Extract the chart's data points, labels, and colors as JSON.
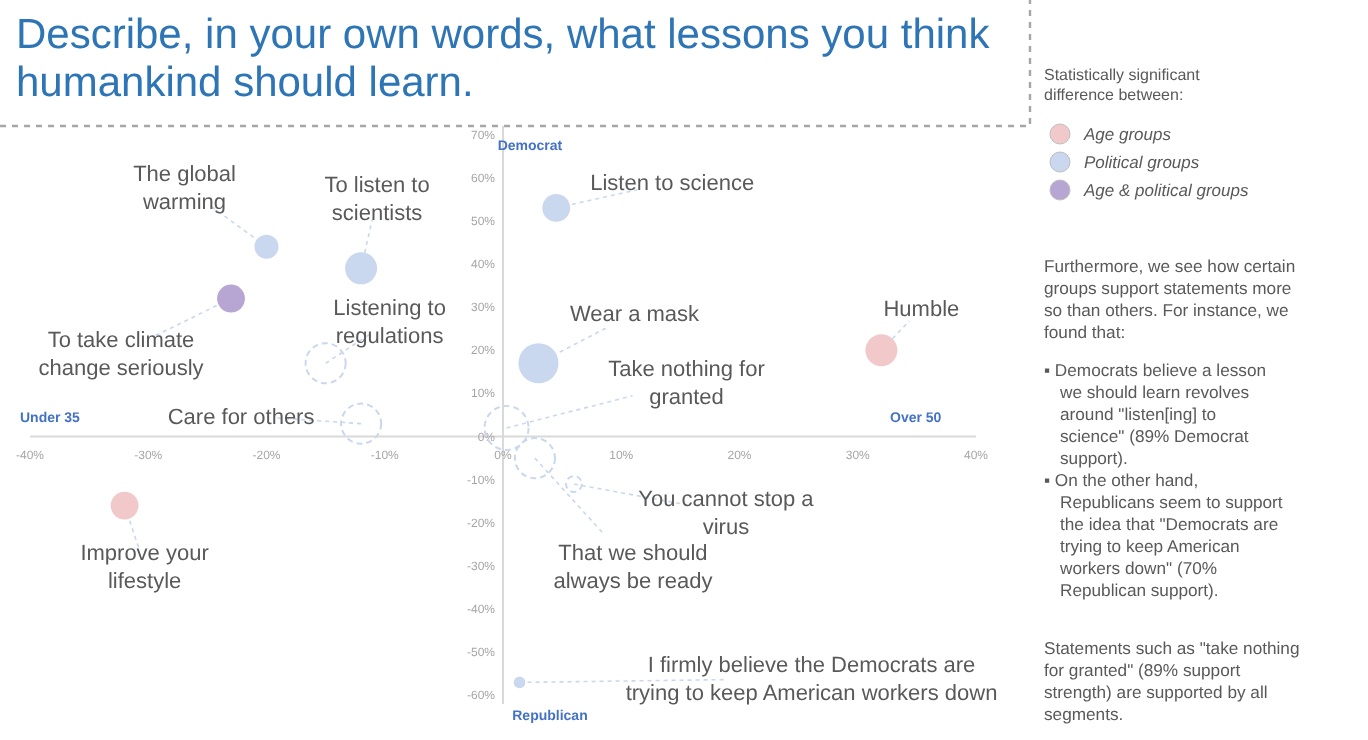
{
  "chart_data": {
    "type": "bubble",
    "title": "Describe, in your own words, what lessons you think humankind should learn.",
    "legend_title": "Statistically significant difference between:",
    "legend": "right",
    "xlim": [
      -40,
      40
    ],
    "ylim": [
      -62,
      72
    ],
    "xticks": [
      {
        "value": -40,
        "label": "-40%"
      },
      {
        "value": -30,
        "label": "-30%"
      },
      {
        "value": -20,
        "label": "-20%"
      },
      {
        "value": -10,
        "label": "-10%"
      },
      {
        "value": 0,
        "label": "0%"
      },
      {
        "value": 10,
        "label": "10%"
      },
      {
        "value": 20,
        "label": "20%"
      },
      {
        "value": 30,
        "label": "30%"
      },
      {
        "value": 40,
        "label": "40%"
      }
    ],
    "yticks": [
      {
        "value": -60,
        "label": "-60%"
      },
      {
        "value": -50,
        "label": "-50%"
      },
      {
        "value": -40,
        "label": "-40%"
      },
      {
        "value": -30,
        "label": "-30%"
      },
      {
        "value": -20,
        "label": "-20%"
      },
      {
        "value": -10,
        "label": "-10%"
      },
      {
        "value": 0,
        "label": "0%"
      },
      {
        "value": 10,
        "label": "10%"
      },
      {
        "value": 20,
        "label": "20%"
      },
      {
        "value": 30,
        "label": "30%"
      },
      {
        "value": 40,
        "label": "40%"
      },
      {
        "value": 50,
        "label": "50%"
      },
      {
        "value": 60,
        "label": "60%"
      },
      {
        "value": 70,
        "label": "70%"
      }
    ],
    "series": [
      {
        "name": "Age groups",
        "color": "#f2c9ca",
        "x": [
          -32,
          32
        ],
        "values": [
          -16,
          20
        ],
        "sizes": [
          0.4,
          0.53
        ]
      },
      {
        "name": "Political groups",
        "color": "#c9d8ee",
        "x": [
          -20,
          -12,
          4.5,
          3,
          1.4
        ],
        "values": [
          44,
          39,
          53,
          17,
          -57
        ],
        "sizes": [
          0.3,
          0.53,
          0.4,
          0.83,
          0.07
        ]
      },
      {
        "name": "Age & political groups",
        "color": "#b7a5d3",
        "x": [
          -23
        ],
        "values": [
          32
        ],
        "sizes": [
          0.4
        ]
      },
      {
        "color": "#c9d8ee",
        "line_style": "dashed",
        "x": [
          -15,
          -12,
          0.3,
          2.7,
          6
        ],
        "values": [
          17,
          3,
          2,
          -5,
          -11
        ],
        "sizes": [
          0.83,
          0.83,
          1,
          0.83,
          0.13
        ]
      }
    ],
    "annotations": [
      {
        "text": "The global warming",
        "x": -20,
        "y": 44
      },
      {
        "text": "To listen to scientists",
        "x": -12,
        "y": 39
      },
      {
        "text": "To take climate change seriously",
        "x": -23,
        "y": 32
      },
      {
        "text": "Listening to regulations",
        "x": -15,
        "y": 17
      },
      {
        "text": "Care for others",
        "x": -12,
        "y": 3
      },
      {
        "text": "Improve your lifestyle",
        "x": -32,
        "y": -16
      },
      {
        "text": "Listen to science",
        "x": 4.5,
        "y": 53
      },
      {
        "text": "Wear a mask",
        "x": 3,
        "y": 17
      },
      {
        "text": "Take nothing for granted",
        "x": 0.3,
        "y": 2
      },
      {
        "text": "You cannot stop a virus",
        "x": 6,
        "y": -11
      },
      {
        "text": "That we should always be ready",
        "x": 2.7,
        "y": -5
      },
      {
        "text": "I firmly believe the Democrats are trying to keep American workers down",
        "x": 1.4,
        "y": -57
      },
      {
        "text": "Humble",
        "x": 32,
        "y": 20
      },
      "Democrat",
      "Republican",
      "Under 35",
      "Over 50",
      "Furthermore, we see how certain groups support statements more so than others. For instance, we found that:",
      "▪ Democrats believe a lesson we should learn revolves around \"listen[ing] to science\" (89% Democrat support).",
      "▪ On the other hand, Republicans seem to support the idea that \"Democrats are trying to keep American workers down\" (70% Republican support).",
      "Statements such as \"take nothing for granted\" (89% support strength) are supported by all segments."
    ]
  }
}
